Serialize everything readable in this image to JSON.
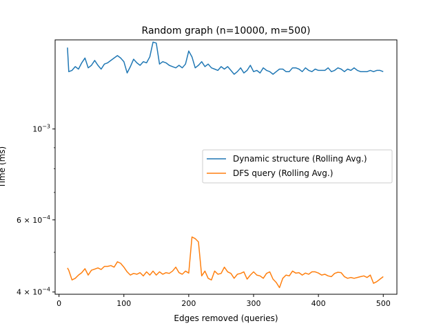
{
  "chart_data": {
    "type": "line",
    "title": "Random graph (n=10000, m=500)",
    "xlabel": "Edges removed (queries)",
    "ylabel": "Time (ms)",
    "yscale": "log",
    "xlim": [
      -6,
      521
    ],
    "ylim": [
      0.000395,
      0.00165
    ],
    "x_ticks": [
      0,
      100,
      200,
      300,
      400,
      500
    ],
    "y_ticks": [
      {
        "value": 0.001,
        "base": "10",
        "exp": "−3"
      },
      {
        "value": 0.0006,
        "base": "6 × 10",
        "exp": "−4"
      },
      {
        "value": 0.0004,
        "base": "4 × 10",
        "exp": "−4"
      }
    ],
    "legend_position": "center-right",
    "grid": false,
    "series": [
      {
        "name": "Dynamic structure (Rolling Avg.)",
        "color": "#1f77b4",
        "x": [
          13,
          15,
          20,
          25,
          30,
          35,
          40,
          45,
          50,
          55,
          60,
          65,
          70,
          75,
          80,
          85,
          90,
          95,
          100,
          105,
          110,
          115,
          120,
          125,
          130,
          135,
          140,
          145,
          150,
          155,
          160,
          165,
          170,
          175,
          180,
          185,
          190,
          195,
          200,
          205,
          210,
          215,
          220,
          225,
          230,
          235,
          240,
          245,
          250,
          255,
          260,
          265,
          270,
          275,
          280,
          285,
          290,
          295,
          300,
          305,
          310,
          315,
          320,
          325,
          330,
          335,
          340,
          345,
          350,
          355,
          360,
          365,
          370,
          375,
          380,
          385,
          390,
          395,
          400,
          405,
          410,
          415,
          420,
          425,
          430,
          435,
          440,
          445,
          450,
          455,
          460,
          465,
          470,
          475,
          480,
          485,
          490,
          495,
          500
        ],
        "y": [
          0.00158,
          0.00138,
          0.00139,
          0.00142,
          0.0014,
          0.00145,
          0.00149,
          0.00141,
          0.00143,
          0.00147,
          0.00143,
          0.0014,
          0.00144,
          0.00145,
          0.00147,
          0.00149,
          0.00151,
          0.00149,
          0.00146,
          0.00137,
          0.00142,
          0.00148,
          0.00145,
          0.00143,
          0.00146,
          0.00145,
          0.0015,
          0.00163,
          0.00162,
          0.00144,
          0.00146,
          0.00145,
          0.00143,
          0.00142,
          0.00141,
          0.00143,
          0.00141,
          0.00144,
          0.00155,
          0.0015,
          0.00141,
          0.00143,
          0.00146,
          0.00142,
          0.00144,
          0.00141,
          0.0014,
          0.00139,
          0.00142,
          0.0014,
          0.00142,
          0.00139,
          0.00136,
          0.00138,
          0.00141,
          0.00137,
          0.00139,
          0.00143,
          0.00138,
          0.00139,
          0.00137,
          0.00141,
          0.00139,
          0.00138,
          0.00136,
          0.00138,
          0.0014,
          0.0014,
          0.00138,
          0.00138,
          0.00141,
          0.00141,
          0.0014,
          0.00138,
          0.00141,
          0.00139,
          0.00138,
          0.0014,
          0.00139,
          0.00139,
          0.00139,
          0.00141,
          0.00138,
          0.00139,
          0.00141,
          0.0014,
          0.00138,
          0.0014,
          0.00139,
          0.00141,
          0.00139,
          0.00138,
          0.00138,
          0.00138,
          0.00139,
          0.00138,
          0.00139,
          0.00139,
          0.00138
        ]
      },
      {
        "name": "DFS query (Rolling Avg.)",
        "color": "#ff7f0e",
        "x": [
          13,
          15,
          20,
          25,
          30,
          35,
          40,
          45,
          50,
          55,
          60,
          65,
          70,
          75,
          80,
          85,
          90,
          95,
          100,
          105,
          110,
          115,
          120,
          125,
          130,
          135,
          140,
          145,
          150,
          155,
          160,
          165,
          170,
          175,
          180,
          185,
          190,
          195,
          200,
          205,
          210,
          215,
          220,
          225,
          230,
          235,
          240,
          245,
          250,
          255,
          260,
          265,
          270,
          275,
          280,
          285,
          290,
          295,
          300,
          305,
          310,
          315,
          320,
          325,
          330,
          335,
          340,
          345,
          350,
          355,
          360,
          365,
          370,
          375,
          380,
          385,
          390,
          395,
          400,
          405,
          410,
          415,
          420,
          425,
          430,
          435,
          440,
          445,
          450,
          455,
          460,
          465,
          470,
          475,
          480,
          485,
          490,
          495,
          500
        ],
        "y": [
          0.000458,
          0.000452,
          0.000428,
          0.000432,
          0.00044,
          0.000446,
          0.000456,
          0.00044,
          0.000452,
          0.000455,
          0.000458,
          0.000454,
          0.000462,
          0.000462,
          0.000464,
          0.00046,
          0.000474,
          0.00047,
          0.00046,
          0.000448,
          0.00044,
          0.000444,
          0.000442,
          0.000446,
          0.000438,
          0.000448,
          0.00044,
          0.00045,
          0.00044,
          0.000448,
          0.000442,
          0.000446,
          0.000444,
          0.00045,
          0.00046,
          0.000446,
          0.000442,
          0.00045,
          0.000445,
          0.000545,
          0.00054,
          0.00053,
          0.000438,
          0.00045,
          0.000432,
          0.000428,
          0.00045,
          0.000442,
          0.000444,
          0.00046,
          0.000448,
          0.000444,
          0.000432,
          0.000442,
          0.000444,
          0.000448,
          0.00043,
          0.00044,
          0.000448,
          0.00044,
          0.000438,
          0.000432,
          0.000444,
          0.000448,
          0.00043,
          0.000422,
          0.00041,
          0.000432,
          0.00044,
          0.000438,
          0.00045,
          0.000445,
          0.000446,
          0.00044,
          0.000445,
          0.000442,
          0.000448,
          0.000448,
          0.000445,
          0.00044,
          0.000442,
          0.000438,
          0.000436,
          0.000444,
          0.000447,
          0.000446,
          0.000436,
          0.000432,
          0.000434,
          0.000432,
          0.000434,
          0.000436,
          0.000438,
          0.000434,
          0.00044,
          0.00042,
          0.000424,
          0.00043,
          0.000436
        ]
      }
    ]
  }
}
